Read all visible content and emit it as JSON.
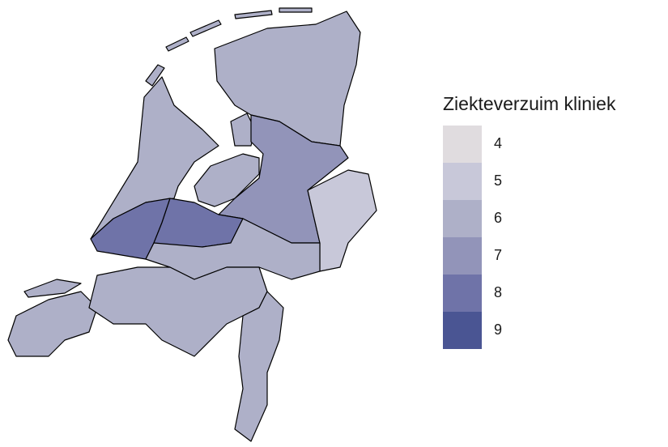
{
  "chart_data": {
    "type": "choropleth",
    "legend": {
      "title": "Ziekteverzuim kliniek",
      "levels": [
        4,
        5,
        6,
        7,
        8,
        9
      ],
      "colors": [
        "#e0dcdf",
        "#c8c8d9",
        "#aeb0c8",
        "#9294b9",
        "#6f73a8",
        "#4a5593"
      ]
    },
    "regions": [
      6,
      6,
      6,
      6,
      7,
      5,
      8,
      8,
      6,
      6,
      6,
      6
    ]
  }
}
